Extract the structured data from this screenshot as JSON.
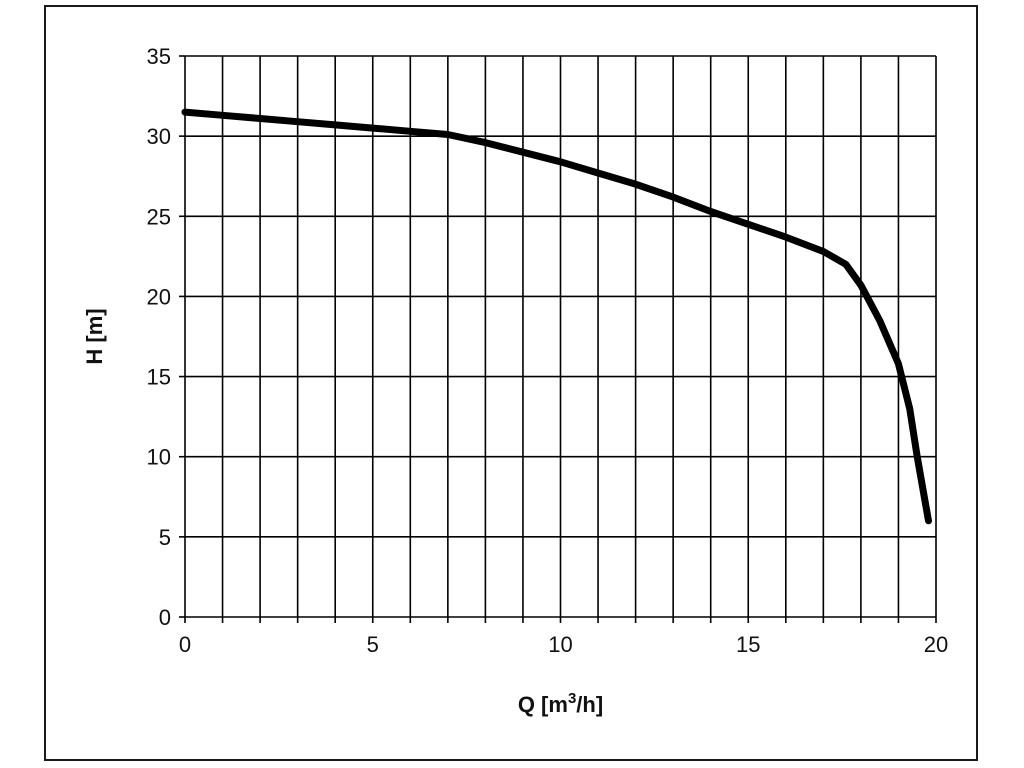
{
  "chart_data": {
    "type": "line",
    "title": "",
    "xlabel_main": "Q [m",
    "xlabel_sup": "3",
    "xlabel_tail": "/h]",
    "ylabel": "H [m]",
    "xlim": [
      0,
      20
    ],
    "ylim": [
      0,
      35
    ],
    "x_ticks": [
      0,
      5,
      10,
      15,
      20
    ],
    "y_ticks": [
      0,
      5,
      10,
      15,
      20,
      25,
      30,
      35
    ],
    "x_grid_step": 1,
    "y_grid_step": 5,
    "grid": true,
    "series_color": "#000000",
    "grid_color": "#000000",
    "series": [
      {
        "x": [
          0,
          1,
          2,
          3,
          4,
          5,
          6,
          7,
          8,
          9,
          10,
          11,
          12,
          13,
          14,
          15,
          16,
          17,
          17.6,
          18,
          18.5,
          19,
          19.3,
          19.5,
          19.8
        ],
        "y": [
          31.5,
          31.3,
          31.1,
          30.9,
          30.7,
          30.5,
          30.3,
          30.1,
          29.6,
          29.0,
          28.4,
          27.7,
          27.0,
          26.2,
          25.3,
          24.5,
          23.7,
          22.8,
          22.0,
          20.7,
          18.5,
          15.8,
          13.0,
          10.0,
          6.0
        ]
      }
    ]
  }
}
